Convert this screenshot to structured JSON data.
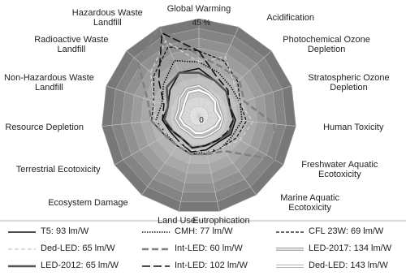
{
  "chart_data": {
    "type": "radar",
    "categories": [
      "Global Warming",
      "Acidification",
      "Photochemical Ozone Depletion",
      "Stratospheric Ozone Depletion",
      "Human Toxicity",
      "Freshwater Aquatic Ecotoxicity",
      "Marine Aquatic Ecotoxicity",
      "Eutrophication",
      "Land Use",
      "Ecosystem Damage",
      "Terrestrial Ecotoxicity",
      "Resource Depletion",
      "Non-Hazardous Waste Landfill",
      "Radioactive Waste Landfill",
      "Hazardous Waste Landfill"
    ],
    "rlim": [
      0,
      45
    ],
    "rticks": [
      {
        "value": 0,
        "label": "0"
      },
      {
        "value": 45,
        "label": "45 %"
      }
    ],
    "series": [
      {
        "name": "T5: 93 lm/W",
        "color": "#111111",
        "width": 1.6,
        "values": [
          22,
          18,
          17,
          15,
          17,
          17,
          15,
          16,
          17,
          15,
          15,
          17,
          15,
          18,
          22
        ]
      },
      {
        "name": "CMH: 77 lm/W",
        "color": "#111111",
        "width": 1.6,
        "dash": "1.5 1.5",
        "values": [
          25,
          22,
          20,
          20,
          20,
          18,
          18,
          17,
          18,
          17,
          17,
          20,
          18,
          22,
          28
        ]
      },
      {
        "name": "CFL 23W: 69 lm/W",
        "color": "#111111",
        "width": 1.2,
        "dash": "4 2",
        "values": [
          30,
          28,
          24,
          20,
          22,
          20,
          18,
          18,
          18,
          17,
          18,
          22,
          22,
          28,
          35
        ]
      },
      {
        "name": "Ded-LED: 65 lm/W",
        "color": "#d0d0d0",
        "width": 1.4,
        "dash": "5 3",
        "values": [
          25,
          30,
          22,
          20,
          25,
          22,
          18,
          17,
          16,
          15,
          17,
          20,
          22,
          30,
          38
        ]
      },
      {
        "name": "Int-LED: 60 lm/W",
        "color": "#808080",
        "width": 2.6,
        "dash": "8 4",
        "values": [
          28,
          25,
          25,
          22,
          35,
          40,
          20,
          18,
          18,
          17,
          18,
          22,
          25,
          38,
          45
        ]
      },
      {
        "name": "LED-2017: 134 lm/W",
        "color": "#a8a8a8",
        "width": 4,
        "double": true,
        "values": [
          14,
          12,
          11,
          10,
          11,
          11,
          10,
          10,
          10,
          9,
          10,
          11,
          10,
          12,
          14
        ]
      },
      {
        "name": "LED-2012: 65 lm/W",
        "color": "#555555",
        "width": 2.6,
        "values": [
          20,
          18,
          17,
          15,
          16,
          16,
          14,
          14,
          15,
          13,
          14,
          16,
          15,
          20,
          22
        ]
      },
      {
        "name": "Int-LED: 102 lm/W",
        "color": "#111111",
        "width": 1.6,
        "dash": "10 4",
        "values": [
          30,
          20,
          18,
          15,
          16,
          15,
          14,
          14,
          15,
          13,
          14,
          17,
          17,
          25,
          42
        ]
      },
      {
        "name": "Ded-LED: 143 lm/W",
        "color": "#ffffff",
        "width": 2.4,
        "values": [
          12,
          11,
          10,
          8,
          10,
          9,
          8,
          8,
          8,
          7,
          8,
          9,
          8,
          9,
          12
        ]
      }
    ]
  }
}
